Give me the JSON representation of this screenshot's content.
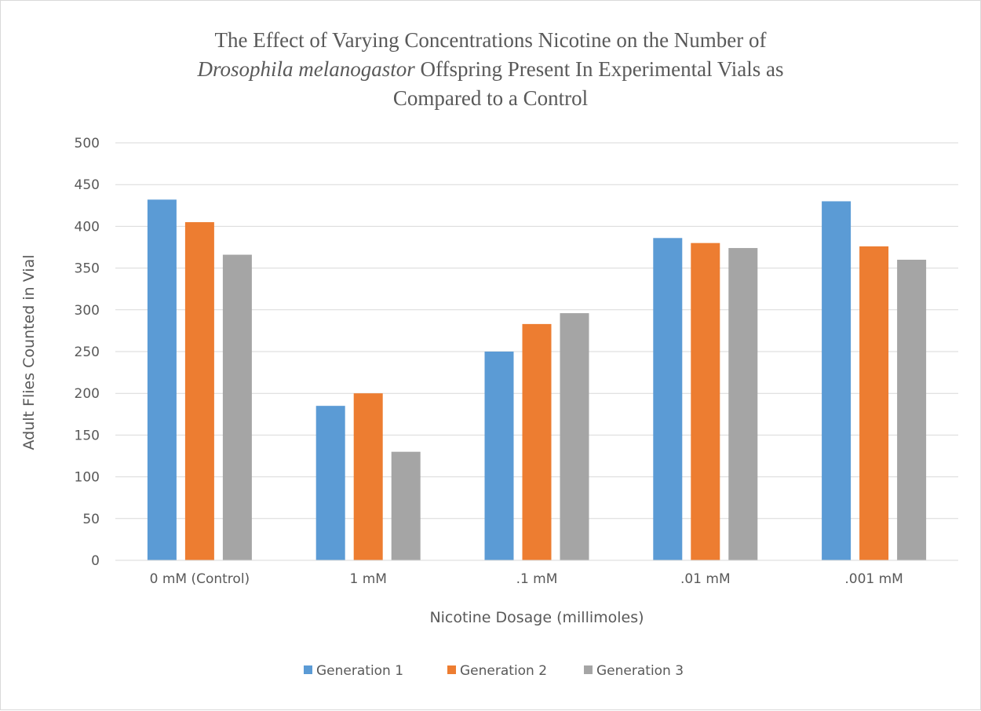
{
  "chart_data": {
    "type": "bar",
    "title": {
      "line1": "The Effect of Varying Concentrations Nicotine on the Number of",
      "line2_italic": "Drosophila melanogastor",
      "line2_rest": " Offspring Present In Experimental Vials as",
      "line3": "Compared to a Control"
    },
    "xlabel": "Nicotine Dosage (millimoles)",
    "ylabel": "Adult Flies Counted in Vial",
    "ylim": [
      0,
      500
    ],
    "yticks": [
      "0",
      "50",
      "100",
      "150",
      "200",
      "250",
      "300",
      "350",
      "400",
      "450",
      "500"
    ],
    "categories": [
      "0 mM (Control)",
      "1 mM",
      ".1 mM",
      ".01 mM",
      ".001 mM"
    ],
    "series": [
      {
        "name": "Generation 1",
        "color": "#5b9bd5",
        "values": [
          432,
          185,
          250,
          386,
          430
        ]
      },
      {
        "name": "Generation 2",
        "color": "#ed7d31",
        "values": [
          405,
          200,
          283,
          380,
          376
        ]
      },
      {
        "name": "Generation 3",
        "color": "#a5a5a5",
        "values": [
          366,
          130,
          296,
          374,
          360
        ]
      }
    ],
    "grid": true,
    "legend_position": "bottom"
  }
}
